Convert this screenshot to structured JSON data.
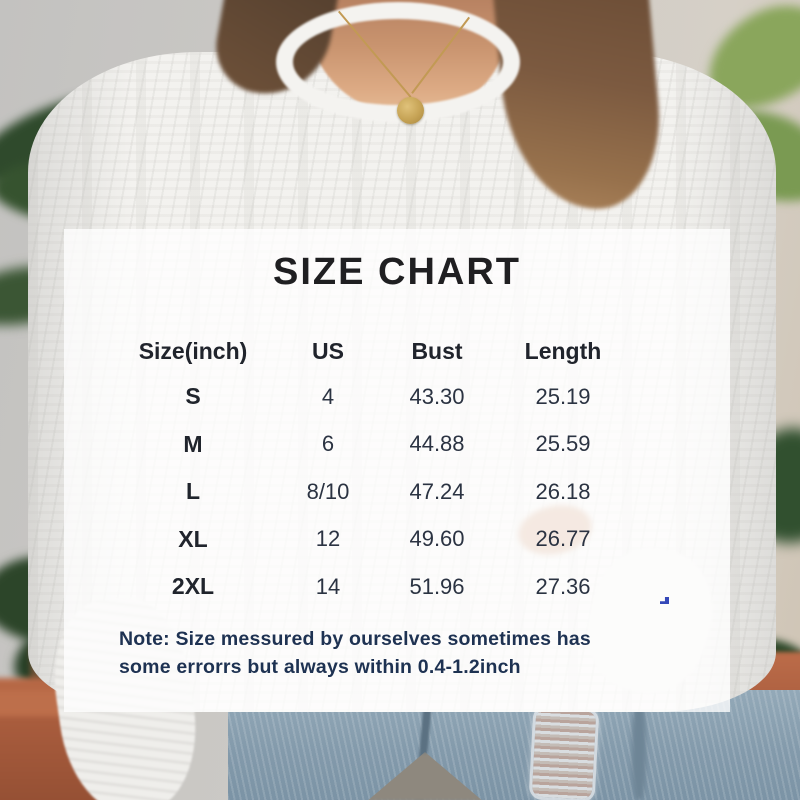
{
  "panel": {
    "title": "SIZE CHART",
    "columns": [
      "Size(inch)",
      "US",
      "Bust",
      "Length"
    ],
    "rows": [
      [
        "S",
        "4",
        "43.30",
        "25.19"
      ],
      [
        "M",
        "6",
        "44.88",
        "25.59"
      ],
      [
        "L",
        "8/10",
        "47.24",
        "26.18"
      ],
      [
        "XL",
        "12",
        "49.60",
        "26.77"
      ],
      [
        "2XL",
        "14",
        "51.96",
        "27.36"
      ]
    ],
    "note_line1": "Note:  Size messured by ourselves sometimes has",
    "note_line2": "some errorrs but always within 0.4-1.2inch"
  },
  "chart_data": {
    "type": "table",
    "title": "SIZE CHART",
    "columns": [
      "Size(inch)",
      "US",
      "Bust",
      "Length"
    ],
    "rows": [
      {
        "size": "S",
        "us": "4",
        "bust": 43.3,
        "length": 25.19
      },
      {
        "size": "M",
        "us": "6",
        "bust": 44.88,
        "length": 25.59
      },
      {
        "size": "L",
        "us": "8/10",
        "bust": 47.24,
        "length": 26.18
      },
      {
        "size": "XL",
        "us": "12",
        "bust": 49.6,
        "length": 26.77
      },
      {
        "size": "2XL",
        "us": "14",
        "bust": 51.96,
        "length": 27.36
      }
    ],
    "note": "Note: Size messured by ourselves sometimes has some errorrs but always within 0.4-1.2inch"
  },
  "colors": {
    "panel_overlay": "#ffffff",
    "title_text": "#1f1f21",
    "table_text": "#2b3342",
    "note_text": "#1e3252",
    "blue_mark": "#3548b8"
  }
}
